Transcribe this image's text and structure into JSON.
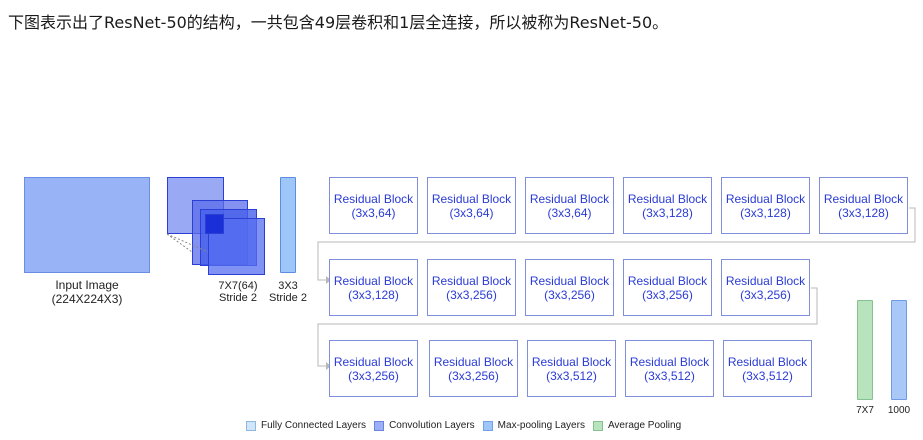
{
  "caption": "下图表示出了ResNet-50的结构，一共包含49层卷积和1层全连接，所以被称为ResNet-50。",
  "input": {
    "label_line1": "Input Image",
    "label_line2": "(224X224X3)"
  },
  "conv": {
    "label_line1": "7X7(64)",
    "label_line2": "Stride 2"
  },
  "pool": {
    "label_line1": "3X3",
    "label_line2": "Stride 2"
  },
  "rows": [
    [
      {
        "title": "Residual Block",
        "spec": "(3x3,64)"
      },
      {
        "title": "Residual Block",
        "spec": "(3x3,64)"
      },
      {
        "title": "Residual Block",
        "spec": "(3x3,64)"
      },
      {
        "title": "Residual Block",
        "spec": "(3x3,128)"
      },
      {
        "title": "Residual Block",
        "spec": "(3x3,128)"
      },
      {
        "title": "Residual Block",
        "spec": "(3x3,128)"
      }
    ],
    [
      {
        "title": "Residual Block",
        "spec": "(3x3,128)"
      },
      {
        "title": "Residual Block",
        "spec": "(3x3,256)"
      },
      {
        "title": "Residual Block",
        "spec": "(3x3,256)"
      },
      {
        "title": "Residual Block",
        "spec": "(3x3,256)"
      },
      {
        "title": "Residual Block",
        "spec": "(3x3,256)"
      }
    ],
    [
      {
        "title": "Residual Block",
        "spec": "(3x3,256)"
      },
      {
        "title": "Residual Block",
        "spec": "(3x3,256)"
      },
      {
        "title": "Residual Block",
        "spec": "(3x3,512)"
      },
      {
        "title": "Residual Block",
        "spec": "(3x3,512)"
      },
      {
        "title": "Residual Block",
        "spec": "(3x3,512)"
      }
    ]
  ],
  "final": {
    "avgpool_label": "7X7",
    "fc_label": "1000"
  },
  "legend": [
    {
      "label": "Fully Connected Layers",
      "color": "#cfe6fb",
      "border": "#8fb8e0"
    },
    {
      "label": "Convolution Layers",
      "color": "#9bb0f5",
      "border": "#6c84e0"
    },
    {
      "label": "Max-pooling Layers",
      "color": "#9ec6f8",
      "border": "#6fa2e6"
    },
    {
      "label": "Average Pooling",
      "color": "#b7e3bd",
      "border": "#86c290"
    }
  ],
  "colors": {
    "block_border": "#7f8fd9",
    "block_text": "#2a3bd6",
    "connector": "#b8b8b8"
  }
}
